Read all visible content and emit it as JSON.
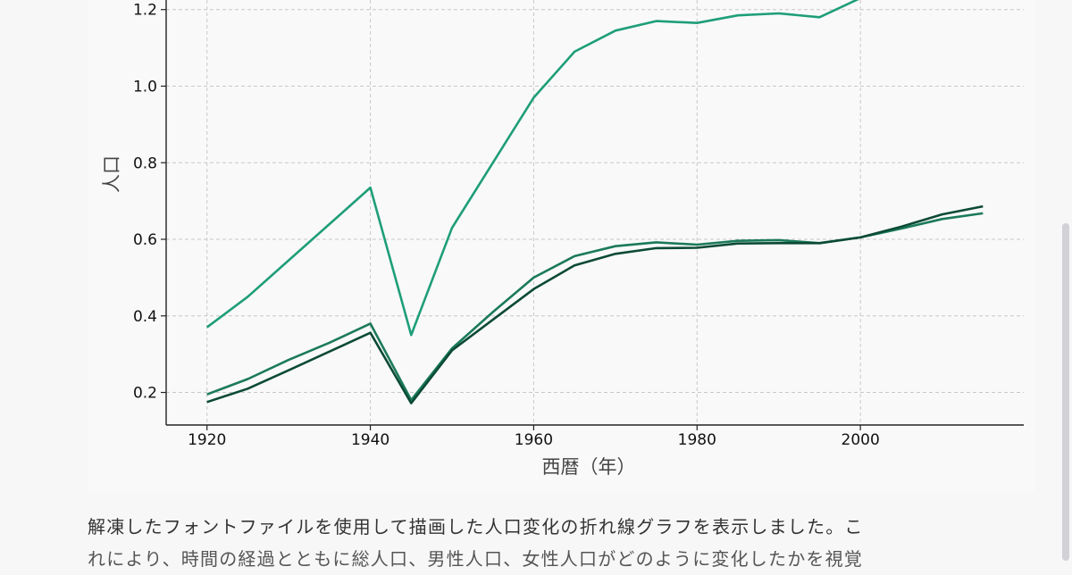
{
  "chart_data": {
    "type": "line",
    "xlabel": "西暦（年）",
    "ylabel": "人口",
    "xlim": [
      1915,
      2020
    ],
    "ylim": [
      0.115,
      1.225
    ],
    "xticks": [
      "1920",
      "1940",
      "1960",
      "1980",
      "2000"
    ],
    "yticks": [
      "0.2",
      "0.4",
      "0.6",
      "0.8",
      "1.0",
      "1.2"
    ],
    "grid": true,
    "x": [
      1920,
      1925,
      1930,
      1935,
      1940,
      1945,
      1950,
      1955,
      1960,
      1965,
      1970,
      1975,
      1980,
      1985,
      1990,
      1995,
      2000,
      2005,
      2010,
      2015
    ],
    "series": [
      {
        "color": "#1e9e78",
        "values": [
          0.37,
          0.45,
          0.545,
          0.64,
          0.735,
          0.35,
          0.63,
          0.8,
          0.97,
          1.09,
          1.145,
          1.17,
          1.165,
          1.185,
          1.19,
          1.18,
          1.23,
          null,
          null,
          null
        ]
      },
      {
        "color": "#1b7a5a",
        "values": [
          0.195,
          0.235,
          0.285,
          0.33,
          0.38,
          0.18,
          0.315,
          0.41,
          0.5,
          0.556,
          0.582,
          0.592,
          0.586,
          0.596,
          0.598,
          0.59,
          0.605,
          0.628,
          0.653,
          0.668
        ]
      },
      {
        "color": "#0c4a36",
        "values": [
          0.175,
          0.21,
          0.258,
          0.307,
          0.356,
          0.172,
          0.31,
          0.39,
          0.47,
          0.532,
          0.562,
          0.577,
          0.578,
          0.589,
          0.59,
          0.59,
          0.605,
          0.633,
          0.665,
          0.686
        ]
      }
    ]
  },
  "message": {
    "line1": "解凍したフォントファイルを使用して描画した人口変化の折れ線グラフを表示しました。こ",
    "line2": "れにより、時間の経過とともに総人口、男性人口、女性人口がどのように変化したかを視覚"
  },
  "colors": {
    "page_background": "#f7f7f8",
    "card_background": "#f9f9f9",
    "grid": "#c8c8c8",
    "axis": "#222222"
  }
}
